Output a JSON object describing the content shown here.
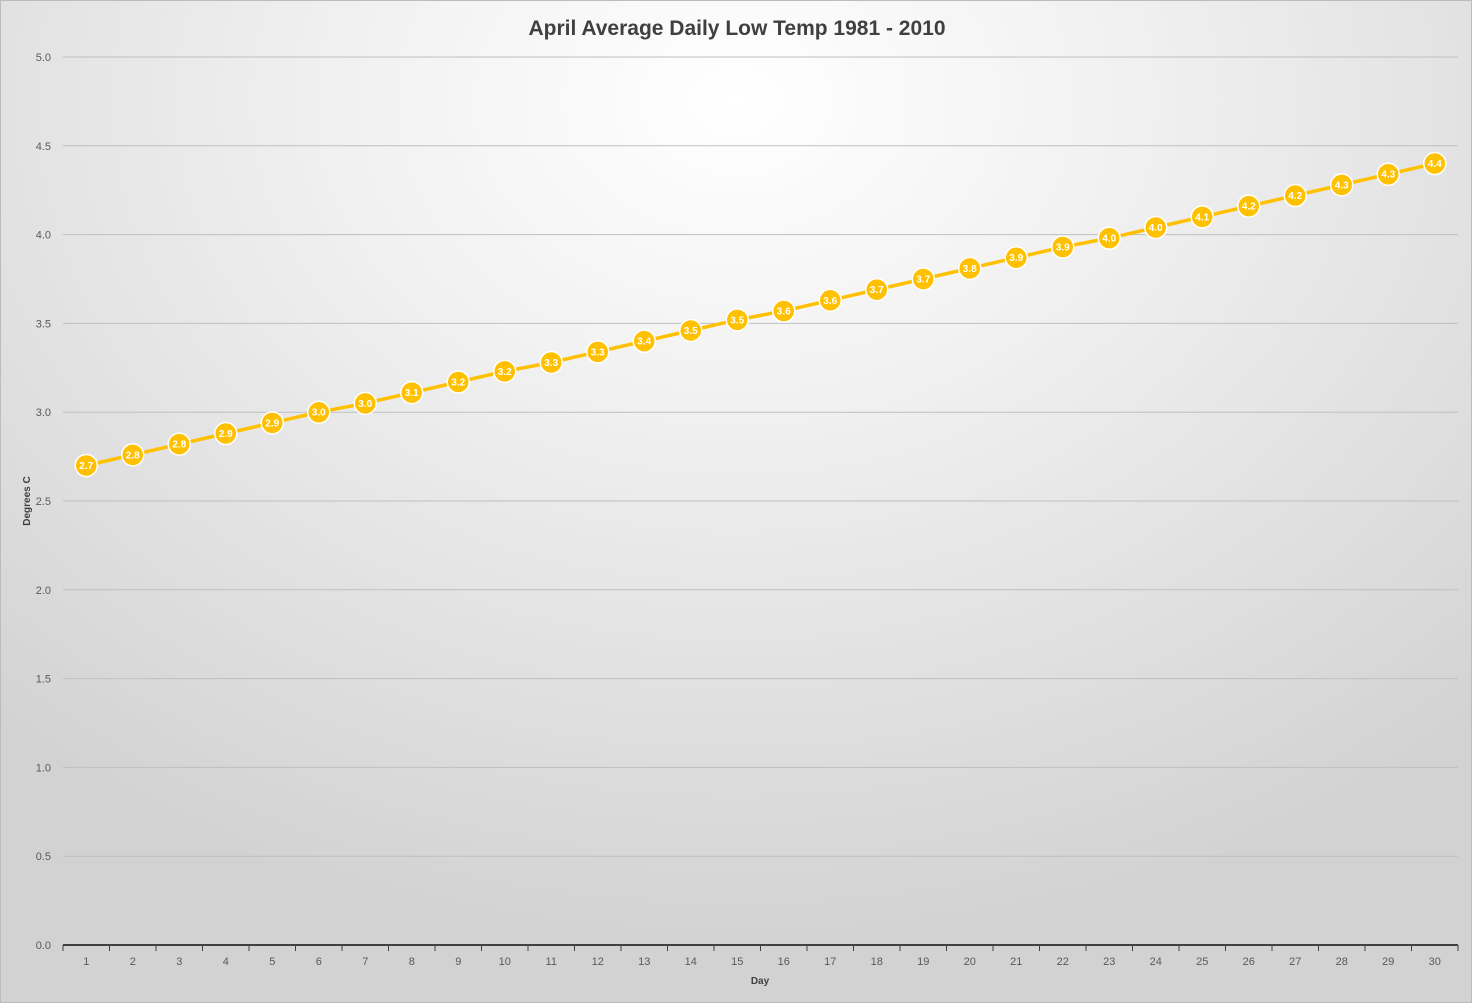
{
  "chart_data": {
    "type": "line",
    "title": "April Average Daily Low Temp 1981 - 2010",
    "xlabel": "Day",
    "ylabel": "Degrees C",
    "ylim": [
      0,
      5.0
    ],
    "y_ticks": [
      "0.0",
      "0.5",
      "1.0",
      "1.5",
      "2.0",
      "2.5",
      "3.0",
      "3.5",
      "4.0",
      "4.5",
      "5.0"
    ],
    "categories": [
      "1",
      "2",
      "3",
      "4",
      "5",
      "6",
      "7",
      "8",
      "9",
      "10",
      "11",
      "12",
      "13",
      "14",
      "15",
      "16",
      "17",
      "18",
      "19",
      "20",
      "21",
      "22",
      "23",
      "24",
      "25",
      "26",
      "27",
      "28",
      "29",
      "30"
    ],
    "series": [
      {
        "color": "#ffc000",
        "values": [
          2.7,
          2.76,
          2.82,
          2.88,
          2.94,
          3.0,
          3.05,
          3.11,
          3.17,
          3.23,
          3.28,
          3.34,
          3.4,
          3.46,
          3.52,
          3.57,
          3.63,
          3.69,
          3.75,
          3.81,
          3.87,
          3.93,
          3.98,
          4.04,
          4.1,
          4.16,
          4.22,
          4.28,
          4.34,
          4.4
        ],
        "labels": [
          "2.7",
          "2.8",
          "2.8",
          "2.9",
          "2.9",
          "3.0",
          "3.0",
          "3.1",
          "3.2",
          "3.2",
          "3.3",
          "3.3",
          "3.4",
          "3.5",
          "3.5",
          "3.6",
          "3.6",
          "3.7",
          "3.7",
          "3.8",
          "3.9",
          "3.9",
          "4.0",
          "4.0",
          "4.1",
          "4.2",
          "4.2",
          "4.3",
          "4.3",
          "4.4"
        ]
      }
    ],
    "grid": true,
    "legend": "none"
  }
}
